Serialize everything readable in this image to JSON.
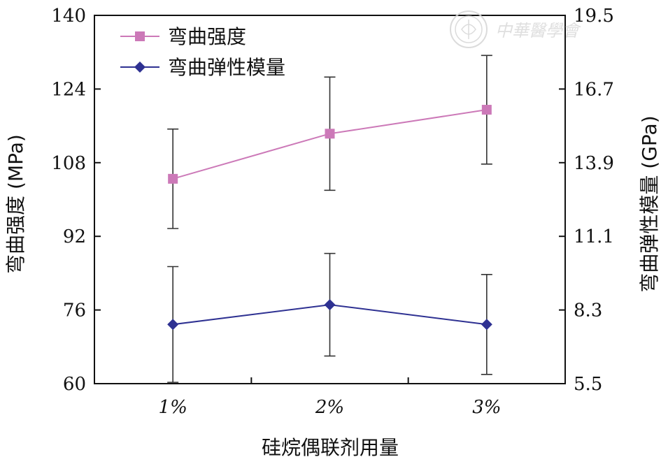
{
  "chart_data": {
    "type": "line",
    "xlabel": "硅烷偶联剂用量",
    "ylabel_left": "弯曲强度 (MPa)",
    "ylabel_right": "弯曲弹性模量 (GPa)",
    "categories": [
      "1%",
      "2%",
      "3%"
    ],
    "ylim_left": [
      60,
      140
    ],
    "yticks_left": [
      "60",
      "76",
      "92",
      "108",
      "124",
      "140"
    ],
    "ylim_right": [
      5.5,
      19.5
    ],
    "yticks_right": [
      "5.5",
      "8.3",
      "11.1",
      "13.9",
      "16.7",
      "19.5"
    ],
    "grid": false,
    "legend_position": "top-left",
    "series": [
      {
        "name": "弯曲强度",
        "axis": "left",
        "color": "#cc79b8",
        "marker": "square",
        "values": [
          104.5,
          114.3,
          119.5
        ],
        "error": [
          10.8,
          12.3,
          11.8
        ]
      },
      {
        "name": "弯曲弹性模量",
        "axis": "right",
        "color": "#2e3192",
        "marker": "diamond",
        "values": [
          7.75,
          8.5,
          7.75
        ],
        "error": [
          2.2,
          1.95,
          1.9
        ]
      }
    ]
  },
  "watermark": {
    "text": "中華醫學會",
    "icon": "seal-logo-icon"
  }
}
